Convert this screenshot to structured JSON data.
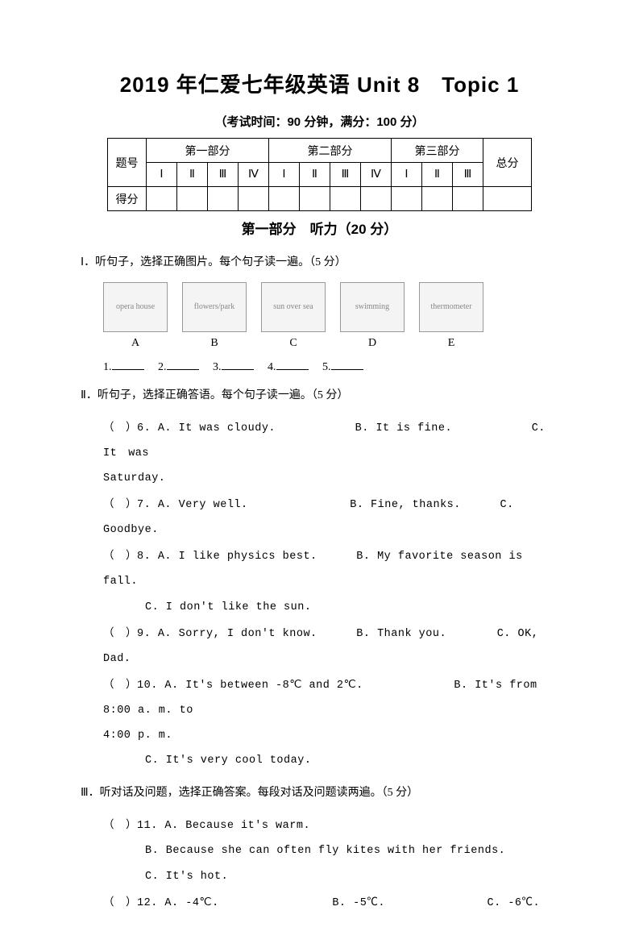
{
  "title": "2019 年仁爱七年级英语 Unit 8　Topic 1",
  "subtitle": "（考试时间：90 分钟，满分：100 分）",
  "table": {
    "row_label_1": "题号",
    "row_label_2": "得分",
    "part1": "第一部分",
    "part2": "第二部分",
    "part3": "第三部分",
    "total": "总分",
    "cols_p1": [
      "Ⅰ",
      "Ⅱ",
      "Ⅲ",
      "Ⅳ"
    ],
    "cols_p2": [
      "Ⅰ",
      "Ⅱ",
      "Ⅲ",
      "Ⅳ"
    ],
    "cols_p3": [
      "Ⅰ",
      "Ⅱ",
      "Ⅲ"
    ]
  },
  "section1_header": "第一部分　听力（20 分）",
  "s1": {
    "instr": "Ⅰ．听句子，选择正确图片。每个句子读一遍。（5 分）",
    "pic_alts": [
      "opera house",
      "flowers/park",
      "sun over sea",
      "swimming",
      "thermometer"
    ],
    "pic_labels": [
      "A",
      "B",
      "C",
      "D",
      "E"
    ],
    "blanks_prefix": [
      "1.",
      "2.",
      "3.",
      "4.",
      "5."
    ]
  },
  "s2": {
    "instr": "Ⅱ．听句子，选择正确答语。每个句子读一遍。（5 分）",
    "q6": {
      "n": "6.",
      "a": "A. It was cloudy.",
      "b": "B. It is fine.",
      "c": "C.　It　was"
    },
    "q6_cont": "Saturday.",
    "q7": {
      "n": "7.",
      "a": "A. Very well.",
      "b": "B. Fine, thanks.",
      "c": "C. Goodbye."
    },
    "q8": {
      "n": "8.",
      "a": "A. I like physics best.",
      "b": "B. My favorite season is fall."
    },
    "q8_c": "C. I don't like the sun.",
    "q9": {
      "n": "9.",
      "a": "A. Sorry, I don't know.",
      "b": "B. Thank you.",
      "c": "C. OK, Dad."
    },
    "q10": {
      "n": "10.",
      "a": "A. It's between -8℃ and 2℃.",
      "b": "B. It's from 8:00 a. m. to"
    },
    "q10_cont": "4:00 p. m.",
    "q10_c": "C. It's very cool today."
  },
  "s3": {
    "instr": "Ⅲ．听对话及问题，选择正确答案。每段对话及问题读两遍。（5 分）",
    "q11": {
      "n": "11.",
      "a": "A. Because it's warm."
    },
    "q11_b": "B. Because she can often fly kites with her friends.",
    "q11_c": "C. It's hot.",
    "q12": {
      "n": "12.",
      "a": "A. -4℃.",
      "b": "B. -5℃.",
      "c": "C. -6℃."
    }
  },
  "paren_open": "（",
  "paren_close": "）"
}
